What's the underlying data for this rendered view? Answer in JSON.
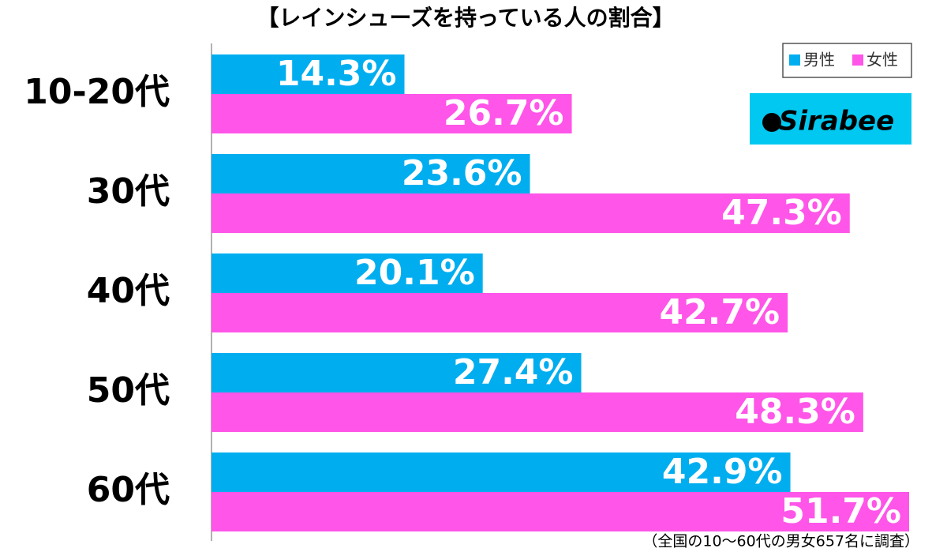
{
  "chart_data": {
    "type": "bar",
    "orientation": "horizontal",
    "title": "【レインシューズを持っている人の割合】",
    "categories": [
      "10-20代",
      "30代",
      "40代",
      "50代",
      "60代"
    ],
    "series": [
      {
        "name": "男性",
        "color": "#00aeef",
        "values": [
          14.3,
          23.6,
          20.1,
          27.4,
          42.9
        ],
        "value_labels": [
          "14.3%",
          "23.6%",
          "20.1%",
          "27.4%",
          "42.9%"
        ]
      },
      {
        "name": "女性",
        "color": "#ff55e8",
        "values": [
          26.7,
          47.3,
          42.7,
          48.3,
          51.7
        ],
        "value_labels": [
          "26.7%",
          "47.3%",
          "42.7%",
          "48.3%",
          "51.7%"
        ]
      }
    ],
    "legend": "top-right",
    "note": "（全国の10〜60代の男女657名に調査）"
  },
  "brand": "Sirabee"
}
